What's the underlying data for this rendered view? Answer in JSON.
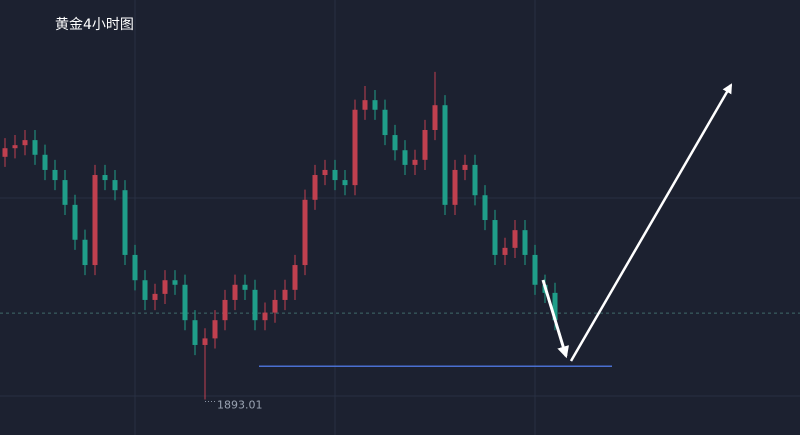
{
  "chart_data": {
    "type": "candlestick",
    "title": "黄金4小时图",
    "ylim": [
      1886,
      1972
    ],
    "up_color": "#c0404f",
    "down_color": "#1f9e89",
    "support_line": 1899.6,
    "price_line": 1910.1,
    "series": [
      {
        "name": "open",
        "values": [
          1941.0,
          1942.7,
          1943.3,
          1944.3,
          1941.4,
          1938.4,
          1936.4,
          1931.5,
          1924.6,
          1919.6,
          1937.4,
          1936.4,
          1934.4,
          1921.6,
          1916.6,
          1912.7,
          1913.9,
          1916.6,
          1915.7,
          1908.7,
          1903.8,
          1905.1,
          1908.7,
          1912.7,
          1915.7,
          1914.7,
          1908.7,
          1910.2,
          1912.7,
          1914.7,
          1919.6,
          1932.5,
          1937.4,
          1938.4,
          1936.4,
          1935.4,
          1950.3,
          1952.2,
          1950.3,
          1945.3,
          1942.3,
          1939.4,
          1940.4,
          1946.3,
          1951.2,
          1931.5,
          1938.4,
          1939.4,
          1933.4,
          1928.5,
          1921.6,
          1923.0,
          1926.5,
          1921.6,
          1915.7,
          1914.1
        ]
      },
      {
        "name": "high",
        "values": [
          1944.7,
          1945.3,
          1946.3,
          1946.3,
          1943.4,
          1940.4,
          1938.4,
          1933.5,
          1926.6,
          1939.4,
          1939.4,
          1938.4,
          1936.4,
          1923.6,
          1918.6,
          1915.9,
          1918.6,
          1918.6,
          1917.7,
          1910.7,
          1907.1,
          1910.7,
          1914.7,
          1917.7,
          1917.7,
          1916.7,
          1912.2,
          1914.7,
          1916.7,
          1921.6,
          1934.5,
          1939.4,
          1940.4,
          1940.4,
          1938.4,
          1952.3,
          1955.0,
          1954.2,
          1952.3,
          1947.3,
          1944.3,
          1942.4,
          1948.3,
          1957.8,
          1953.2,
          1940.4,
          1941.4,
          1941.4,
          1935.4,
          1930.5,
          1925.0,
          1928.5,
          1928.5,
          1923.6,
          1917.7,
          1916.1
        ]
      },
      {
        "name": "low",
        "values": [
          1939.0,
          1940.7,
          1941.3,
          1939.4,
          1936.4,
          1934.4,
          1929.5,
          1922.6,
          1917.6,
          1917.6,
          1934.4,
          1932.4,
          1919.6,
          1914.6,
          1910.7,
          1910.7,
          1911.9,
          1913.7,
          1906.7,
          1901.8,
          1893.01,
          1903.1,
          1906.7,
          1910.7,
          1912.7,
          1906.7,
          1906.7,
          1908.2,
          1910.7,
          1912.7,
          1917.6,
          1930.5,
          1935.4,
          1934.4,
          1933.4,
          1933.4,
          1948.3,
          1948.3,
          1943.3,
          1940.3,
          1937.4,
          1937.4,
          1938.4,
          1944.3,
          1929.5,
          1929.5,
          1936.4,
          1931.4,
          1926.5,
          1919.6,
          1919.6,
          1921.0,
          1919.6,
          1913.7,
          1912.1,
          1906.7
        ]
      },
      {
        "name": "close",
        "values": [
          1942.7,
          1943.3,
          1944.3,
          1941.4,
          1938.4,
          1936.4,
          1931.5,
          1924.6,
          1919.6,
          1937.4,
          1936.4,
          1934.4,
          1921.6,
          1916.6,
          1912.7,
          1913.9,
          1916.6,
          1915.7,
          1908.7,
          1903.8,
          1905.1,
          1908.7,
          1912.7,
          1915.7,
          1914.7,
          1908.7,
          1910.2,
          1912.7,
          1914.7,
          1919.6,
          1932.5,
          1937.4,
          1938.4,
          1936.4,
          1935.4,
          1950.3,
          1952.2,
          1950.3,
          1945.3,
          1942.3,
          1939.4,
          1940.4,
          1946.3,
          1951.2,
          1931.5,
          1938.4,
          1939.4,
          1933.4,
          1928.5,
          1921.6,
          1923.0,
          1926.5,
          1921.6,
          1915.7,
          1914.1,
          1908.7
        ]
      }
    ]
  }
}
